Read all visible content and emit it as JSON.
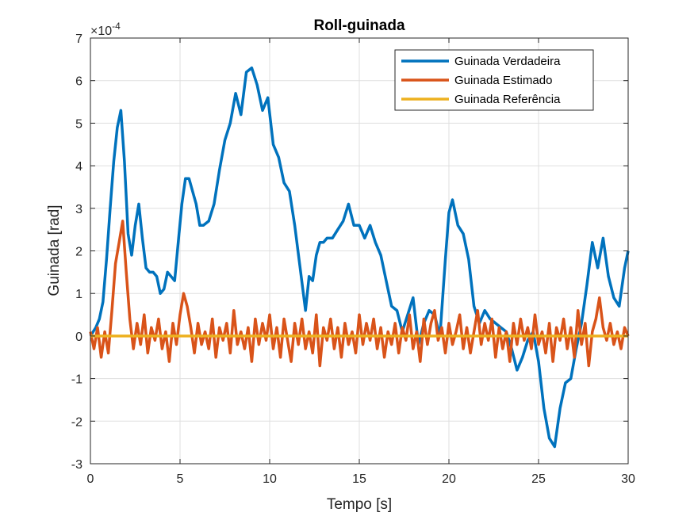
{
  "chart_data": {
    "type": "line",
    "title": "Roll-guinada",
    "xlabel": "Tempo [s]",
    "ylabel": "Guinada [rad]",
    "xlim": [
      0,
      30
    ],
    "ylim": [
      -3,
      7
    ],
    "y_multiplier": "×10",
    "y_exponent": "-4",
    "xticks": [
      0,
      5,
      10,
      15,
      20,
      25,
      30
    ],
    "yticks": [
      -3,
      -2,
      -1,
      0,
      1,
      2,
      3,
      4,
      5,
      6,
      7
    ],
    "grid": true,
    "legend_position": "top-right",
    "series": [
      {
        "name": "Guinada Verdadeira",
        "color": "#0072BD",
        "x": [
          0,
          0.3,
          0.5,
          0.7,
          0.9,
          1.1,
          1.3,
          1.5,
          1.7,
          1.9,
          2.1,
          2.3,
          2.5,
          2.7,
          2.9,
          3.1,
          3.3,
          3.5,
          3.7,
          3.9,
          4.1,
          4.3,
          4.5,
          4.7,
          4.9,
          5.1,
          5.3,
          5.5,
          5.7,
          5.9,
          6.1,
          6.3,
          6.6,
          6.9,
          7.2,
          7.5,
          7.8,
          8.1,
          8.4,
          8.7,
          9.0,
          9.3,
          9.6,
          9.9,
          10.2,
          10.5,
          10.8,
          11.1,
          11.4,
          11.7,
          12.0,
          12.2,
          12.4,
          12.6,
          12.8,
          13.0,
          13.2,
          13.5,
          13.8,
          14.1,
          14.4,
          14.7,
          15.0,
          15.3,
          15.6,
          15.9,
          16.2,
          16.5,
          16.8,
          17.1,
          17.4,
          17.7,
          18.0,
          18.3,
          18.6,
          18.9,
          19.2,
          19.5,
          19.8,
          20.0,
          20.2,
          20.5,
          20.8,
          21.1,
          21.4,
          21.7,
          22.0,
          22.3,
          22.6,
          22.9,
          23.2,
          23.5,
          23.8,
          24.1,
          24.4,
          24.7,
          25.0,
          25.3,
          25.6,
          25.9,
          26.2,
          26.5,
          26.8,
          27.1,
          27.4,
          27.7,
          28.0,
          28.3,
          28.6,
          28.9,
          29.2,
          29.5,
          29.8,
          30.0
        ],
        "y": [
          0,
          0.2,
          0.4,
          0.8,
          1.8,
          3.0,
          4.1,
          4.9,
          5.3,
          4.1,
          2.4,
          1.9,
          2.6,
          3.1,
          2.3,
          1.6,
          1.5,
          1.5,
          1.4,
          1.0,
          1.1,
          1.5,
          1.4,
          1.3,
          2.2,
          3.1,
          3.7,
          3.7,
          3.4,
          3.1,
          2.6,
          2.6,
          2.7,
          3.1,
          3.9,
          4.6,
          5.0,
          5.7,
          5.2,
          6.2,
          6.3,
          5.9,
          5.3,
          5.6,
          4.5,
          4.2,
          3.6,
          3.4,
          2.6,
          1.6,
          0.6,
          1.4,
          1.3,
          1.9,
          2.2,
          2.2,
          2.3,
          2.3,
          2.5,
          2.7,
          3.1,
          2.6,
          2.6,
          2.3,
          2.6,
          2.2,
          1.9,
          1.3,
          0.7,
          0.6,
          0.1,
          0.5,
          0.9,
          -0.2,
          0.3,
          0.6,
          0.5,
          0.0,
          1.8,
          2.9,
          3.2,
          2.6,
          2.4,
          1.8,
          0.7,
          0.3,
          0.6,
          0.4,
          0.3,
          0.2,
          0.1,
          -0.3,
          -0.8,
          -0.5,
          -0.1,
          0.1,
          -0.6,
          -1.7,
          -2.4,
          -2.6,
          -1.7,
          -1.1,
          -1.0,
          -0.3,
          0.3,
          1.2,
          2.2,
          1.6,
          2.3,
          1.4,
          0.9,
          0.7,
          1.6,
          2.0
        ]
      },
      {
        "name": "Guinada Estimado",
        "color": "#D95319",
        "x": [
          0,
          0.2,
          0.4,
          0.6,
          0.8,
          1.0,
          1.2,
          1.4,
          1.6,
          1.8,
          2.0,
          2.2,
          2.4,
          2.6,
          2.8,
          3.0,
          3.2,
          3.4,
          3.6,
          3.8,
          4.0,
          4.2,
          4.4,
          4.6,
          4.8,
          5.0,
          5.2,
          5.4,
          5.6,
          5.8,
          6.0,
          6.2,
          6.4,
          6.6,
          6.8,
          7.0,
          7.2,
          7.4,
          7.6,
          7.8,
          8.0,
          8.2,
          8.4,
          8.6,
          8.8,
          9.0,
          9.2,
          9.4,
          9.6,
          9.8,
          10.0,
          10.2,
          10.4,
          10.6,
          10.8,
          11.0,
          11.2,
          11.4,
          11.6,
          11.8,
          12.0,
          12.2,
          12.4,
          12.6,
          12.8,
          13.0,
          13.2,
          13.4,
          13.6,
          13.8,
          14.0,
          14.2,
          14.4,
          14.6,
          14.8,
          15.0,
          15.2,
          15.4,
          15.6,
          15.8,
          16.0,
          16.2,
          16.4,
          16.6,
          16.8,
          17.0,
          17.2,
          17.4,
          17.6,
          17.8,
          18.0,
          18.2,
          18.4,
          18.6,
          18.8,
          19.0,
          19.2,
          19.4,
          19.6,
          19.8,
          20.0,
          20.2,
          20.4,
          20.6,
          20.8,
          21.0,
          21.2,
          21.4,
          21.6,
          21.8,
          22.0,
          22.2,
          22.4,
          22.6,
          22.8,
          23.0,
          23.2,
          23.4,
          23.6,
          23.8,
          24.0,
          24.2,
          24.4,
          24.6,
          24.8,
          25.0,
          25.2,
          25.4,
          25.6,
          25.8,
          26.0,
          26.2,
          26.4,
          26.6,
          26.8,
          27.0,
          27.2,
          27.4,
          27.6,
          27.8,
          28.0,
          28.2,
          28.4,
          28.6,
          28.8,
          29.0,
          29.2,
          29.4,
          29.6,
          29.8,
          30.0
        ],
        "y": [
          0.1,
          -0.3,
          0.2,
          -0.5,
          0.1,
          -0.4,
          0.6,
          1.7,
          2.2,
          2.7,
          1.5,
          0.4,
          -0.3,
          0.3,
          -0.2,
          0.5,
          -0.4,
          0.2,
          -0.1,
          0.4,
          -0.3,
          0.1,
          -0.6,
          0.3,
          -0.2,
          0.5,
          1.0,
          0.7,
          0.2,
          -0.4,
          0.3,
          -0.2,
          0.1,
          -0.3,
          0.4,
          -0.5,
          0.2,
          -0.1,
          0.3,
          -0.4,
          0.6,
          -0.2,
          0.1,
          -0.3,
          0.2,
          -0.6,
          0.4,
          -0.2,
          0.3,
          -0.1,
          0.5,
          -0.3,
          0.2,
          -0.5,
          0.4,
          -0.1,
          -0.6,
          0.3,
          -0.2,
          0.4,
          -0.3,
          0.1,
          -0.4,
          0.5,
          -0.7,
          0.2,
          -0.1,
          0.4,
          -0.3,
          0.2,
          -0.5,
          0.3,
          -0.2,
          0.1,
          -0.4,
          0.5,
          -0.2,
          0.3,
          -0.1,
          0.4,
          -0.3,
          0.2,
          -0.5,
          0.1,
          -0.2,
          0.3,
          -0.4,
          0.2,
          -0.1,
          0.5,
          -0.3,
          0.1,
          -0.6,
          0.4,
          -0.2,
          0.3,
          0.6,
          -0.1,
          0.2,
          -0.4,
          0.3,
          -0.2,
          0.1,
          0.5,
          -0.3,
          0.2,
          -0.4,
          0.1,
          0.6,
          -0.2,
          0.3,
          -0.1,
          0.4,
          -0.5,
          0.2,
          -0.3,
          0.1,
          -0.6,
          0.3,
          -0.2,
          0.4,
          -0.1,
          0.2,
          -0.3,
          0.5,
          -0.2,
          0.1,
          -0.4,
          0.3,
          -0.6,
          0.2,
          -0.1,
          0.4,
          -0.3,
          0.2,
          -0.5,
          0.6,
          -0.2,
          0.3,
          -0.7,
          0.1,
          0.4,
          0.9,
          0.2,
          -0.1,
          0.3,
          -0.2,
          0.1,
          -0.3,
          0.2,
          0.0
        ]
      },
      {
        "name": "Guinada Referência",
        "color": "#EDB120",
        "x": [
          0,
          30
        ],
        "y": [
          0,
          0
        ]
      }
    ]
  }
}
